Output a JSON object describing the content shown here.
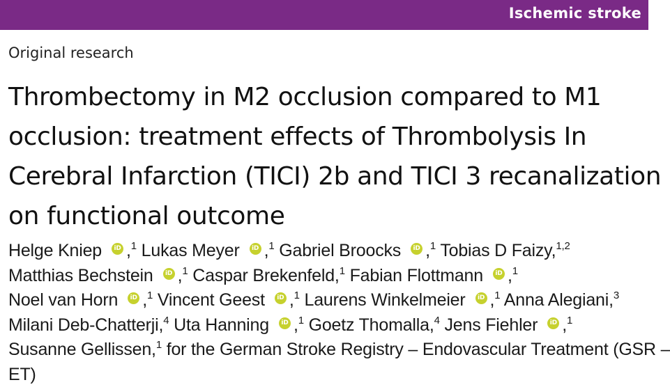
{
  "header": {
    "section_label": "Ischemic stroke",
    "banner_color": "#7a2a86"
  },
  "article": {
    "type": "Original research",
    "title_lines": [
      "Thrombectomy in M2 occlusion compared to M1",
      "occlusion: treatment effects of Thrombolysis In",
      "Cerebral Infarction (TICI) 2b and TICI 3 recanalization",
      "on functional outcome"
    ]
  },
  "authors": [
    {
      "name": "Helge Kniep",
      "orcid": true,
      "sep": ",",
      "aff": "1"
    },
    {
      "name": "Lukas Meyer",
      "orcid": true,
      "sep": ",",
      "aff": "1"
    },
    {
      "name": "Gabriel Broocks",
      "orcid": true,
      "sep": ",",
      "aff": "1"
    },
    {
      "name": "Tobias D Faizy,",
      "orcid": false,
      "sep": "",
      "aff": "1,2"
    },
    {
      "name": "Matthias Bechstein",
      "orcid": true,
      "sep": ",",
      "aff": "1"
    },
    {
      "name": "Caspar Brekenfeld,",
      "orcid": false,
      "sep": "",
      "aff": "1"
    },
    {
      "name": "Fabian Flottmann",
      "orcid": true,
      "sep": ",",
      "aff": "1"
    },
    {
      "name": "Noel van Horn",
      "orcid": true,
      "sep": ",",
      "aff": "1"
    },
    {
      "name": "Vincent Geest",
      "orcid": true,
      "sep": ",",
      "aff": "1"
    },
    {
      "name": "Laurens Winkelmeier",
      "orcid": true,
      "sep": ",",
      "aff": "1"
    },
    {
      "name": "Anna Alegiani,",
      "orcid": false,
      "sep": "",
      "aff": "3"
    },
    {
      "name": "Milani Deb-Chatterji,",
      "orcid": false,
      "sep": "",
      "aff": "4"
    },
    {
      "name": "Uta Hanning",
      "orcid": true,
      "sep": ",",
      "aff": "1"
    },
    {
      "name": "Goetz Thomalla,",
      "orcid": false,
      "sep": "",
      "aff": "4"
    },
    {
      "name": "Jens Fiehler",
      "orcid": true,
      "sep": ",",
      "aff": "1"
    },
    {
      "name": "Susanne Gellissen,",
      "orcid": false,
      "sep": "",
      "aff": "1"
    },
    {
      "name": "for the German Stroke Registry – Endovascular Treatment (GSR –",
      "orcid": false,
      "sep": "",
      "aff": ""
    },
    {
      "name": "ET)",
      "orcid": false,
      "sep": "",
      "aff": ""
    }
  ],
  "orcid_color": "#c6d12e"
}
